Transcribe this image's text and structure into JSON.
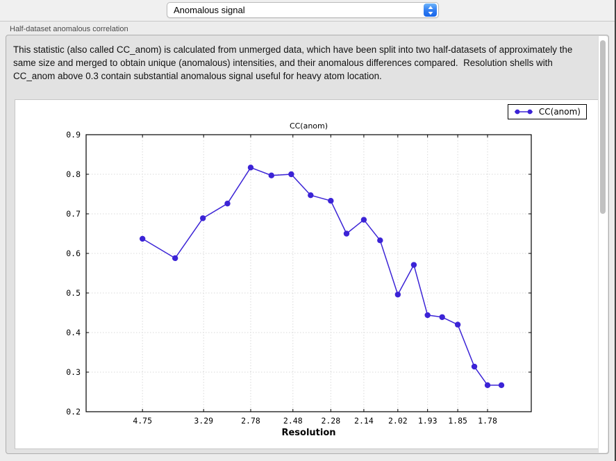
{
  "toolbar": {
    "plot_selector_value": "Anomalous signal"
  },
  "section": {
    "label": "Half-dataset anomalous correlation"
  },
  "description": "This statistic (also called CC_anom) is calculated from unmerged data, which have been split into two half-datasets of approximately the same size and merged to obtain unique (anomalous) intensities, and their anomalous differences compared.  Resolution shells with CC_anom above 0.3 contain substantial anomalous signal useful for heavy atom location.",
  "colors": {
    "series": "#3b23d6",
    "grid": "#d9d9d9",
    "dropdown_accent": "#2f7bf1"
  },
  "chart_data": {
    "type": "line",
    "title": "CC(anom)",
    "xlabel": "Resolution",
    "grid": true,
    "legend": {
      "position": "top-right",
      "entries": [
        {
          "label": "CC(anom)"
        }
      ]
    },
    "x_axis": {
      "scale": "1/d^2",
      "smin": 0.0,
      "smax": 0.35,
      "tick_labels": [
        "4.75",
        "3.29",
        "2.78",
        "2.48",
        "2.28",
        "2.14",
        "2.02",
        "1.93",
        "1.85",
        "1.78"
      ]
    },
    "y_axis": {
      "min": 0.2,
      "max": 0.9,
      "ticks": [
        0.2,
        0.3,
        0.4,
        0.5,
        0.6,
        0.7,
        0.8,
        0.9
      ]
    },
    "series": [
      {
        "name": "CC(anom)",
        "marker": "circle",
        "points": [
          [
            4.75,
            0.637
          ],
          [
            3.78,
            0.588
          ],
          [
            3.3,
            0.689
          ],
          [
            3.0,
            0.726
          ],
          [
            2.78,
            0.817
          ],
          [
            2.62,
            0.797
          ],
          [
            2.49,
            0.8
          ],
          [
            2.38,
            0.747
          ],
          [
            2.28,
            0.733
          ],
          [
            2.21,
            0.65
          ],
          [
            2.14,
            0.685
          ],
          [
            2.08,
            0.633
          ],
          [
            2.02,
            0.496
          ],
          [
            1.97,
            0.571
          ],
          [
            1.93,
            0.444
          ],
          [
            1.89,
            0.439
          ],
          [
            1.85,
            0.42
          ],
          [
            1.81,
            0.314
          ],
          [
            1.78,
            0.267
          ],
          [
            1.75,
            0.267
          ]
        ]
      }
    ]
  }
}
